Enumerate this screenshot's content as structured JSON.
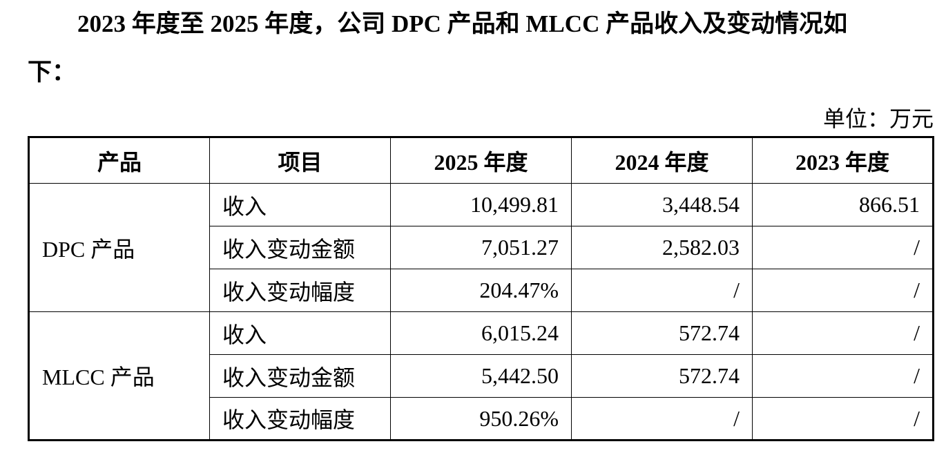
{
  "intro": {
    "line1": "2023 年度至 2025 年度，公司 DPC 产品和 MLCC 产品收入及变动情况如",
    "line2": "下："
  },
  "unit_label": "单位：万元",
  "table": {
    "headers": [
      "产品",
      "项目",
      "2025 年度",
      "2024 年度",
      "2023 年度"
    ],
    "groups": [
      {
        "product": "DPC 产品",
        "rows": [
          {
            "item": "收入",
            "y2025": "10,499.81",
            "y2024": "3,448.54",
            "y2023": "866.51"
          },
          {
            "item": "收入变动金额",
            "y2025": "7,051.27",
            "y2024": "2,582.03",
            "y2023": "/"
          },
          {
            "item": "收入变动幅度",
            "y2025": "204.47%",
            "y2024": "/",
            "y2023": "/"
          }
        ]
      },
      {
        "product": "MLCC 产品",
        "rows": [
          {
            "item": "收入",
            "y2025": "6,015.24",
            "y2024": "572.74",
            "y2023": "/"
          },
          {
            "item": "收入变动金额",
            "y2025": "5,442.50",
            "y2024": "572.74",
            "y2023": "/"
          },
          {
            "item": "收入变动幅度",
            "y2025": "950.26%",
            "y2024": "/",
            "y2023": "/"
          }
        ]
      }
    ]
  }
}
